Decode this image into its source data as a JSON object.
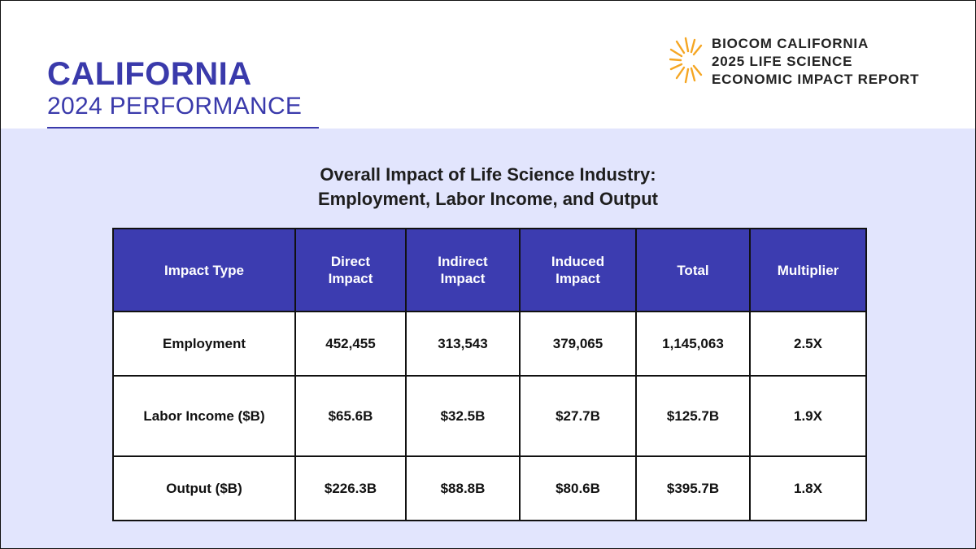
{
  "header": {
    "state": "CALIFORNIA",
    "subtitle": "2024 PERFORMANCE",
    "report_lines": [
      "BIOCOM CALIFORNIA",
      "2025 LIFE SCIENCE",
      "ECONOMIC IMPACT REPORT"
    ],
    "logo_icon": "sunburst-icon"
  },
  "table_title": {
    "line1": "Overall Impact of Life Science Industry:",
    "line2": "Employment, Labor Income, and Output"
  },
  "table": {
    "headers": [
      "Impact Type",
      "Direct Impact",
      "Indirect Impact",
      "Induced Impact",
      "Total",
      "Multiplier"
    ],
    "rows": [
      [
        "Employment",
        "452,455",
        "313,543",
        "379,065",
        "1,145,063",
        "2.5X"
      ],
      [
        "Labor Income ($B)",
        "$65.6B",
        "$32.5B",
        "$27.7B",
        "$125.7B",
        "1.9X"
      ],
      [
        "Output ($B)",
        "$226.3B",
        "$88.8B",
        "$80.6B",
        "$395.7B",
        "1.8X"
      ]
    ]
  },
  "colors": {
    "brand_blue": "#3a3aab",
    "header_fill": "#3c3cb0",
    "panel_bg": "#e2e5fd",
    "logo_orange": "#f5a623"
  }
}
